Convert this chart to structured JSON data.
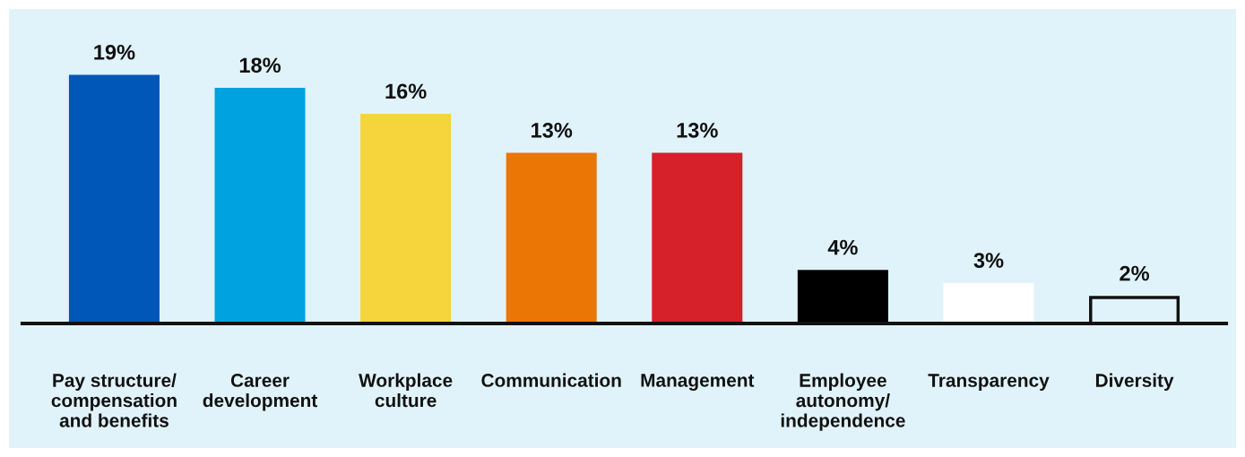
{
  "chart_data": {
    "type": "bar",
    "categories": [
      "Pay structure/\ncompensation\nand benefits",
      "Career\ndevelopment",
      "Workplace\nculture",
      "Communication",
      "Management",
      "Employee\nautonomy/\nindependence",
      "Transparency",
      "Diversity"
    ],
    "values": [
      19,
      18,
      16,
      13,
      13,
      4,
      3,
      2
    ],
    "value_labels": [
      "19%",
      "18%",
      "16%",
      "13%",
      "13%",
      "4%",
      "3%",
      "2%"
    ],
    "colors": [
      "#0057b8",
      "#00a3e0",
      "#f6d43c",
      "#ec7605",
      "#d6202a",
      "#000000",
      "#ffffff",
      "#e0f3fa"
    ],
    "grid": false,
    "legend": false
  }
}
